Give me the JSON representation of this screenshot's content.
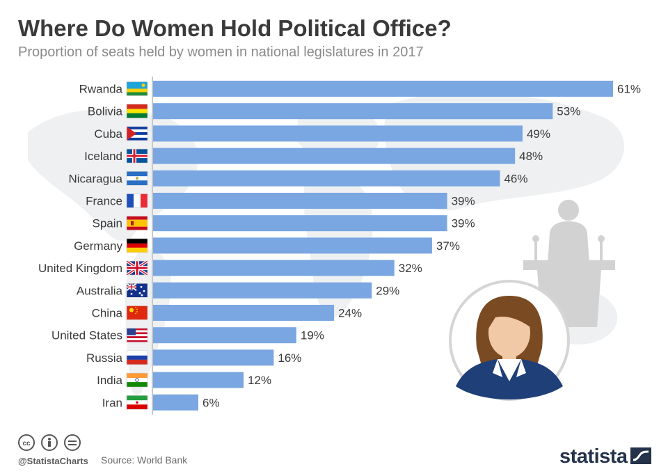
{
  "header": {
    "title": "Where Do Women Hold Political Office?",
    "subtitle": "Proportion of seats held by women in national legislatures in 2017"
  },
  "footer": {
    "handle": "@StatistaCharts",
    "source": "Source: World Bank",
    "brand": "statista"
  },
  "colors": {
    "bar": "#7aa6e2",
    "label": "#3a3a3a",
    "axis": "#c8c8c8",
    "map": "#eef0f2",
    "silhouette": "#d2d2d2",
    "hair": "#7a4a22",
    "skin": "#f2c9a6",
    "suit": "#1f3f78"
  },
  "chart_data": {
    "type": "bar",
    "orientation": "horizontal",
    "title": "Where Do Women Hold Political Office?",
    "subtitle": "Proportion of seats held by women in national legislatures in 2017",
    "categories": [
      "Rwanda",
      "Bolivia",
      "Cuba",
      "Iceland",
      "Nicaragua",
      "France",
      "Spain",
      "Germany",
      "United Kingdom",
      "Australia",
      "China",
      "United States",
      "Russia",
      "India",
      "Iran"
    ],
    "values": [
      61,
      53,
      49,
      48,
      46,
      39,
      39,
      37,
      32,
      29,
      24,
      19,
      16,
      12,
      6
    ],
    "value_labels": [
      "61%",
      "53%",
      "49%",
      "48%",
      "46%",
      "39%",
      "39%",
      "37%",
      "32%",
      "29%",
      "24%",
      "19%",
      "16%",
      "12%",
      "6%"
    ],
    "flag_icons": [
      "rwanda-flag-icon",
      "bolivia-flag-icon",
      "cuba-flag-icon",
      "iceland-flag-icon",
      "nicaragua-flag-icon",
      "france-flag-icon",
      "spain-flag-icon",
      "germany-flag-icon",
      "united-kingdom-flag-icon",
      "australia-flag-icon",
      "china-flag-icon",
      "united-states-flag-icon",
      "russia-flag-icon",
      "india-flag-icon",
      "iran-flag-icon"
    ],
    "xlim": [
      0,
      61
    ],
    "xlabel": "",
    "ylabel": "",
    "grid": false,
    "legend": "none"
  },
  "icons": [
    "world-map-icon",
    "podium-speaker-icon",
    "woman-politician-icon",
    "cc-icon",
    "attribution-icon",
    "no-derivatives-icon",
    "statista-logo-icon"
  ]
}
